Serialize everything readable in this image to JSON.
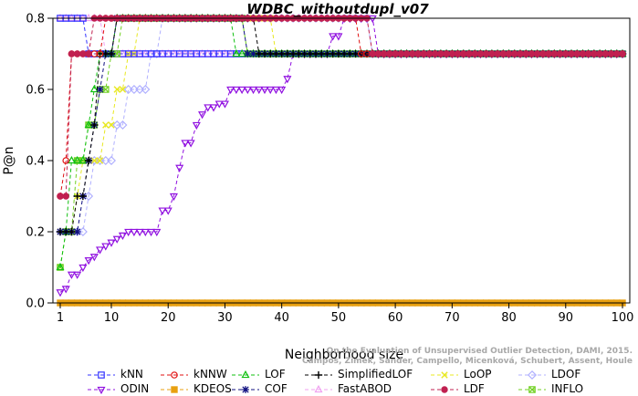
{
  "chart_data": {
    "type": "line",
    "title": "WDBC_withoutdupl_v07",
    "xlabel": "Neighborhood size",
    "ylabel": "P@n",
    "xlim": [
      1,
      100
    ],
    "ylim": [
      0,
      0.8
    ],
    "xticks": [
      1,
      10,
      20,
      30,
      40,
      50,
      60,
      70,
      80,
      90,
      100
    ],
    "yticks": [
      "0.0",
      "0.2",
      "0.4",
      "0.6",
      "0.8"
    ],
    "grid": false,
    "legend_position": "bottom",
    "credit_lines": [
      "Campos, Zimek, Sander, Campello, Micenková, Schubert, Assent, Houle",
      "On the Evaluation of Unsupervised Outlier Detection, DAMI, 2015."
    ],
    "series": [
      {
        "name": "kNN",
        "color": "#3333ff",
        "marker": "square",
        "points": [
          [
            1,
            0.8
          ],
          [
            2,
            0.8
          ],
          [
            3,
            0.8
          ],
          [
            4,
            0.8
          ],
          [
            5,
            0.8
          ],
          [
            6,
            0.7
          ],
          [
            7,
            0.7
          ],
          [
            8,
            0.7
          ],
          [
            9,
            0.7
          ],
          [
            10,
            0.7
          ],
          [
            20,
            0.7
          ],
          [
            40,
            0.7
          ],
          [
            60,
            0.7
          ],
          [
            80,
            0.7
          ],
          [
            100,
            0.7
          ]
        ]
      },
      {
        "name": "kNNW",
        "color": "#e01010",
        "marker": "circle",
        "points": [
          [
            1,
            0.3
          ],
          [
            2,
            0.4
          ],
          [
            3,
            0.7
          ],
          [
            4,
            0.7
          ],
          [
            5,
            0.7
          ],
          [
            6,
            0.7
          ],
          [
            7,
            0.7
          ],
          [
            8,
            0.7
          ],
          [
            9,
            0.8
          ],
          [
            10,
            0.8
          ],
          [
            11,
            0.8
          ],
          [
            12,
            0.8
          ],
          [
            20,
            0.8
          ],
          [
            30,
            0.8
          ],
          [
            40,
            0.8
          ],
          [
            50,
            0.8
          ],
          [
            53,
            0.8
          ],
          [
            54,
            0.7
          ],
          [
            60,
            0.7
          ],
          [
            80,
            0.7
          ],
          [
            100,
            0.7
          ]
        ]
      },
      {
        "name": "LOF",
        "color": "#10c010",
        "marker": "triangle-up",
        "points": [
          [
            1,
            0.1
          ],
          [
            2,
            0.2
          ],
          [
            3,
            0.4
          ],
          [
            4,
            0.4
          ],
          [
            5,
            0.4
          ],
          [
            6,
            0.5
          ],
          [
            7,
            0.6
          ],
          [
            8,
            0.7
          ],
          [
            10,
            0.7
          ],
          [
            11,
            0.8
          ],
          [
            12,
            0.8
          ],
          [
            20,
            0.8
          ],
          [
            30,
            0.8
          ],
          [
            31,
            0.8
          ],
          [
            32,
            0.7
          ],
          [
            40,
            0.7
          ],
          [
            60,
            0.7
          ],
          [
            80,
            0.7
          ],
          [
            100,
            0.7
          ]
        ]
      },
      {
        "name": "SimplifiedLOF",
        "color": "#000000",
        "marker": "plus",
        "points": [
          [
            1,
            0.2
          ],
          [
            2,
            0.2
          ],
          [
            3,
            0.2
          ],
          [
            4,
            0.3
          ],
          [
            5,
            0.3
          ],
          [
            6,
            0.4
          ],
          [
            7,
            0.5
          ],
          [
            8,
            0.7
          ],
          [
            9,
            0.7
          ],
          [
            10,
            0.7
          ],
          [
            11,
            0.8
          ],
          [
            12,
            0.8
          ],
          [
            20,
            0.8
          ],
          [
            30,
            0.8
          ],
          [
            35,
            0.8
          ],
          [
            36,
            0.7
          ],
          [
            40,
            0.7
          ],
          [
            60,
            0.7
          ],
          [
            80,
            0.7
          ],
          [
            100,
            0.7
          ]
        ]
      },
      {
        "name": "LoOP",
        "color": "#e8e820",
        "marker": "x",
        "points": [
          [
            1,
            0.2
          ],
          [
            2,
            0.2
          ],
          [
            3,
            0.2
          ],
          [
            4,
            0.3
          ],
          [
            5,
            0.4
          ],
          [
            6,
            0.4
          ],
          [
            7,
            0.4
          ],
          [
            8,
            0.4
          ],
          [
            9,
            0.5
          ],
          [
            10,
            0.5
          ],
          [
            11,
            0.6
          ],
          [
            12,
            0.6
          ],
          [
            13,
            0.7
          ],
          [
            14,
            0.7
          ],
          [
            15,
            0.8
          ],
          [
            20,
            0.8
          ],
          [
            30,
            0.8
          ],
          [
            38,
            0.8
          ],
          [
            39,
            0.7
          ],
          [
            40,
            0.7
          ],
          [
            60,
            0.7
          ],
          [
            80,
            0.7
          ],
          [
            100,
            0.7
          ]
        ]
      },
      {
        "name": "LDOF",
        "color": "#b0b0ff",
        "marker": "diamond",
        "points": [
          [
            1,
            0.2
          ],
          [
            2,
            0.2
          ],
          [
            3,
            0.2
          ],
          [
            4,
            0.2
          ],
          [
            5,
            0.2
          ],
          [
            6,
            0.3
          ],
          [
            7,
            0.4
          ],
          [
            8,
            0.4
          ],
          [
            9,
            0.4
          ],
          [
            10,
            0.4
          ],
          [
            11,
            0.5
          ],
          [
            12,
            0.5
          ],
          [
            13,
            0.6
          ],
          [
            14,
            0.6
          ],
          [
            15,
            0.6
          ],
          [
            16,
            0.6
          ],
          [
            17,
            0.7
          ],
          [
            18,
            0.7
          ],
          [
            19,
            0.8
          ],
          [
            20,
            0.8
          ],
          [
            30,
            0.8
          ],
          [
            40,
            0.8
          ],
          [
            55,
            0.8
          ],
          [
            56,
            0.7
          ],
          [
            60,
            0.7
          ],
          [
            80,
            0.7
          ],
          [
            100,
            0.7
          ]
        ]
      },
      {
        "name": "ODIN",
        "color": "#9010e0",
        "marker": "triangle-down",
        "points": [
          [
            1,
            0.03
          ],
          [
            2,
            0.04
          ],
          [
            3,
            0.08
          ],
          [
            4,
            0.08
          ],
          [
            5,
            0.1
          ],
          [
            6,
            0.12
          ],
          [
            7,
            0.13
          ],
          [
            8,
            0.15
          ],
          [
            9,
            0.16
          ],
          [
            10,
            0.17
          ],
          [
            11,
            0.18
          ],
          [
            12,
            0.19
          ],
          [
            13,
            0.2
          ],
          [
            14,
            0.2
          ],
          [
            15,
            0.2
          ],
          [
            16,
            0.2
          ],
          [
            17,
            0.2
          ],
          [
            18,
            0.2
          ],
          [
            19,
            0.26
          ],
          [
            20,
            0.26
          ],
          [
            21,
            0.3
          ],
          [
            22,
            0.38
          ],
          [
            23,
            0.45
          ],
          [
            24,
            0.45
          ],
          [
            25,
            0.5
          ],
          [
            26,
            0.53
          ],
          [
            27,
            0.55
          ],
          [
            28,
            0.55
          ],
          [
            29,
            0.56
          ],
          [
            30,
            0.56
          ],
          [
            31,
            0.6
          ],
          [
            32,
            0.6
          ],
          [
            33,
            0.6
          ],
          [
            34,
            0.6
          ],
          [
            35,
            0.6
          ],
          [
            36,
            0.6
          ],
          [
            37,
            0.6
          ],
          [
            38,
            0.6
          ],
          [
            39,
            0.6
          ],
          [
            40,
            0.6
          ],
          [
            41,
            0.63
          ],
          [
            42,
            0.7
          ],
          [
            43,
            0.7
          ],
          [
            44,
            0.7
          ],
          [
            45,
            0.7
          ],
          [
            46,
            0.7
          ],
          [
            47,
            0.7
          ],
          [
            48,
            0.7
          ],
          [
            49,
            0.75
          ],
          [
            50,
            0.75
          ],
          [
            51,
            0.8
          ],
          [
            52,
            0.8
          ],
          [
            53,
            0.8
          ],
          [
            54,
            0.8
          ],
          [
            55,
            0.8
          ],
          [
            56,
            0.8
          ],
          [
            57,
            0.7
          ],
          [
            60,
            0.7
          ],
          [
            80,
            0.7
          ],
          [
            100,
            0.7
          ]
        ]
      },
      {
        "name": "KDEOS",
        "color": "#e8a010",
        "marker": "square-filled",
        "points": [
          [
            1,
            0.0
          ],
          [
            10,
            0.0
          ],
          [
            20,
            0.0
          ],
          [
            30,
            0.0
          ],
          [
            40,
            0.0
          ],
          [
            50,
            0.0
          ],
          [
            60,
            0.0
          ],
          [
            70,
            0.0
          ],
          [
            80,
            0.0
          ],
          [
            90,
            0.0
          ],
          [
            100,
            0.0
          ]
        ]
      },
      {
        "name": "COF",
        "color": "#101080",
        "marker": "asterisk",
        "points": [
          [
            1,
            0.2
          ],
          [
            2,
            0.2
          ],
          [
            3,
            0.2
          ],
          [
            4,
            0.2
          ],
          [
            5,
            0.3
          ],
          [
            6,
            0.4
          ],
          [
            7,
            0.5
          ],
          [
            8,
            0.6
          ],
          [
            9,
            0.7
          ],
          [
            10,
            0.7
          ],
          [
            11,
            0.8
          ],
          [
            12,
            0.8
          ],
          [
            20,
            0.8
          ],
          [
            30,
            0.8
          ],
          [
            33,
            0.8
          ],
          [
            34,
            0.7
          ],
          [
            40,
            0.7
          ],
          [
            60,
            0.7
          ],
          [
            80,
            0.7
          ],
          [
            100,
            0.7
          ]
        ]
      },
      {
        "name": "FastABOD",
        "color": "#f0a0f0",
        "marker": "triangle-up",
        "points": [
          [
            1,
            0.8
          ],
          [
            2,
            0.8
          ],
          [
            5,
            0.8
          ],
          [
            8,
            0.8
          ],
          [
            9,
            0.7
          ],
          [
            10,
            0.7
          ],
          [
            20,
            0.7
          ],
          [
            40,
            0.7
          ],
          [
            60,
            0.7
          ],
          [
            80,
            0.7
          ],
          [
            100,
            0.7
          ]
        ]
      },
      {
        "name": "LDF",
        "color": "#c02050",
        "marker": "circle-filled",
        "points": [
          [
            1,
            0.3
          ],
          [
            2,
            0.3
          ],
          [
            3,
            0.7
          ],
          [
            4,
            0.7
          ],
          [
            5,
            0.7
          ],
          [
            6,
            0.7
          ],
          [
            7,
            0.8
          ],
          [
            8,
            0.8
          ],
          [
            10,
            0.8
          ],
          [
            20,
            0.8
          ],
          [
            30,
            0.8
          ],
          [
            40,
            0.8
          ],
          [
            50,
            0.8
          ],
          [
            55,
            0.8
          ],
          [
            56,
            0.7
          ],
          [
            60,
            0.7
          ],
          [
            80,
            0.7
          ],
          [
            100,
            0.7
          ]
        ]
      },
      {
        "name": "INFLO",
        "color": "#70d020",
        "marker": "boxed-x",
        "points": [
          [
            1,
            0.1
          ],
          [
            2,
            0.2
          ],
          [
            3,
            0.2
          ],
          [
            4,
            0.4
          ],
          [
            5,
            0.4
          ],
          [
            6,
            0.5
          ],
          [
            7,
            0.5
          ],
          [
            8,
            0.6
          ],
          [
            9,
            0.6
          ],
          [
            10,
            0.7
          ],
          [
            11,
            0.7
          ],
          [
            12,
            0.8
          ],
          [
            20,
            0.8
          ],
          [
            30,
            0.8
          ],
          [
            33,
            0.8
          ],
          [
            34,
            0.7
          ],
          [
            40,
            0.7
          ],
          [
            60,
            0.7
          ],
          [
            80,
            0.7
          ],
          [
            100,
            0.7
          ]
        ]
      }
    ],
    "legend_rows": [
      [
        "kNN",
        "kNNW",
        "LOF",
        "SimplifiedLOF",
        "LoOP",
        "LDOF"
      ],
      [
        "ODIN",
        "KDEOS",
        "COF",
        "FastABOD",
        "LDF",
        "INFLO"
      ]
    ]
  }
}
